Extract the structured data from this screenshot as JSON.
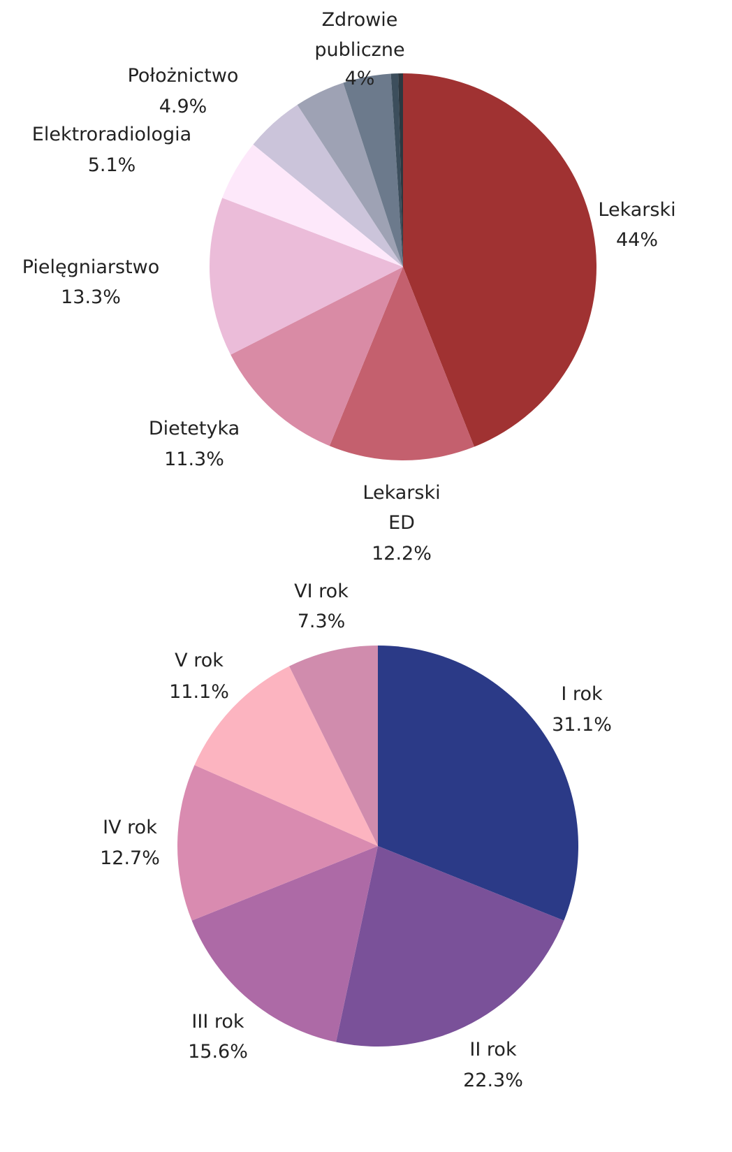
{
  "chart_data": [
    {
      "type": "pie",
      "categories": [
        "Lekarski",
        "Lekarski ED",
        "Dietetyka",
        "Pielęgniarstwo",
        "Elektroradiologia",
        "Położnictwo",
        null,
        "Zdrowie publiczne",
        null,
        null
      ],
      "values": [
        44,
        12.2,
        11.3,
        13.3,
        5.1,
        4.9,
        4.2,
        4,
        0.6,
        0.4
      ],
      "value_labels": [
        "44%",
        "12.2%",
        "11.3%",
        "13.3%",
        "5.1%",
        "4.9%",
        null,
        "4%",
        null,
        null
      ],
      "colors": [
        "#a03232",
        "#c4606e",
        "#d98ba5",
        "#ebbcd9",
        "#fde8fa",
        "#cbc4da",
        "#9ea2b4",
        "#6c7a8c",
        "#3c4e5c",
        "#2c3840"
      ]
    },
    {
      "type": "pie",
      "categories": [
        "I rok",
        "II rok",
        "III rok",
        "IV rok",
        "V rok",
        "VI rok"
      ],
      "values": [
        31.1,
        22.3,
        15.6,
        12.7,
        11.1,
        7.3
      ],
      "value_labels": [
        "31.1%",
        "22.3%",
        "15.6%",
        "12.7%",
        "11.1%",
        "7.3%"
      ],
      "colors": [
        "#2b3a87",
        "#7a5199",
        "#ad6aa6",
        "#d98bb0",
        "#fcb4c0",
        "#d08cad"
      ]
    }
  ]
}
